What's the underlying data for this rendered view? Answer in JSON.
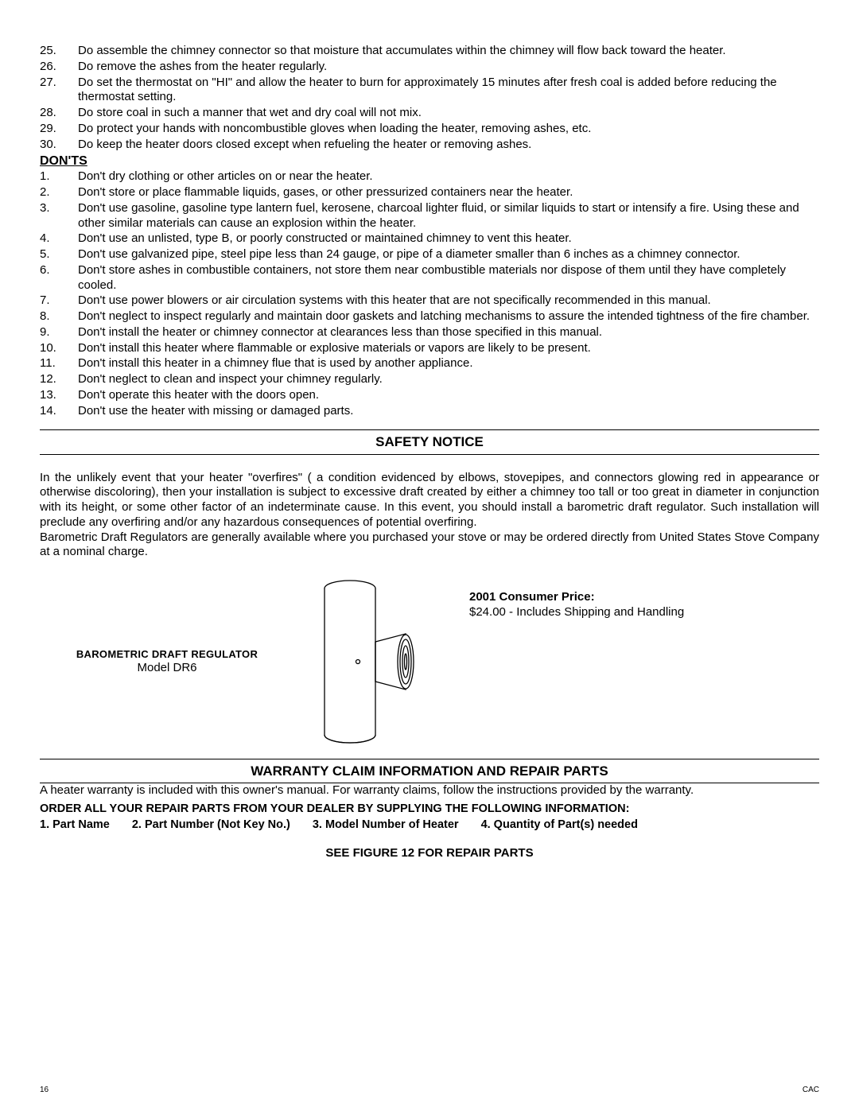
{
  "dos_list": [
    {
      "n": "25.",
      "t": "Do assemble the chimney connector so that moisture that accumulates within the chimney will flow back toward the heater."
    },
    {
      "n": "26.",
      "t": "Do remove the ashes from the heater regularly."
    },
    {
      "n": "27.",
      "t": "Do set the thermostat on \"HI\" and allow the heater to burn for approximately 15 minutes after fresh coal is added before reducing the thermostat setting."
    },
    {
      "n": "28.",
      "t": "Do store coal in such a manner that wet and dry coal will not mix."
    },
    {
      "n": "29.",
      "t": "Do protect your hands with noncombustible gloves when loading the heater, removing ashes, etc."
    },
    {
      "n": "30.",
      "t": "Do keep the heater doors closed except when refueling the heater or removing ashes."
    }
  ],
  "donts_title": "DON'TS",
  "donts_list": [
    {
      "n": "1.",
      "t": "Don't dry clothing or other articles on or near the heater."
    },
    {
      "n": "2.",
      "t": "Don't store or place flammable liquids, gases, or other pressurized containers near the heater."
    },
    {
      "n": "3.",
      "t": "Don't use gasoline, gasoline type lantern fuel, kerosene, charcoal lighter fluid, or similar liquids to start or intensify a fire.  Using these and other similar materials can cause an explosion within the heater."
    },
    {
      "n": "4.",
      "t": "Don't use an unlisted, type B, or poorly constructed or maintained chimney to vent this heater."
    },
    {
      "n": "5.",
      "t": "Don't use galvanized pipe, steel pipe less than 24 gauge, or pipe of a diameter smaller than 6 inches as a chimney connector."
    },
    {
      "n": "6.",
      "t": "Don't store ashes in combustible containers, not store them near combustible materials nor dispose of them until they have completely cooled."
    },
    {
      "n": "7.",
      "t": "Don't use power blowers or air circulation systems with this heater that are not specifically recommended in this manual."
    },
    {
      "n": "8.",
      "t": "Don't neglect to inspect regularly and maintain door gaskets and latching mechanisms to assure the intended tightness of the fire chamber."
    },
    {
      "n": "9.",
      "t": "Don't install the heater or chimney connector at clearances less than those specified in this manual."
    },
    {
      "n": "10.",
      "t": "Don't install this heater where flammable or explosive materials or vapors are likely to be present."
    },
    {
      "n": "11.",
      "t": "Don't install this heater in a chimney flue that is used by another appliance."
    },
    {
      "n": "12.",
      "t": "Don't neglect to clean and inspect your chimney regularly."
    },
    {
      "n": "13.",
      "t": "Don't operate this heater with the doors open."
    },
    {
      "n": "14.",
      "t": "Don't use the heater with missing or damaged parts."
    }
  ],
  "safety_heading": "SAFETY NOTICE",
  "safety_para1": "In the unlikely event that your heater \"overfires\" ( a condition evidenced by elbows, stovepipes, and connectors glowing red in appearance or otherwise discoloring), then your installation is subject to excessive draft created by either a chimney too tall or too great in diameter in conjunction with its height, or some other factor of an indeterminate cause.  In this event, you should install a barometric draft regulator.  Such installation will preclude any overfiring and/or any hazardous consequences of potential overfiring.",
  "safety_para2": "Barometric Draft Regulators are generally available where you purchased your stove or may be ordered directly from United States Stove Company at a nominal charge.",
  "product": {
    "name": "BAROMETRIC DRAFT REGULATOR",
    "model": "Model DR6",
    "price_label": "2001 Consumer Price:",
    "price_text": "$24.00 - Includes Shipping and Handling"
  },
  "warranty_heading": "WARRANTY CLAIM INFORMATION AND REPAIR PARTS",
  "warranty_intro": "A heater warranty is included  with this owner's manual.  For warranty claims, follow the instructions provided by the warranty.",
  "order_line": "ORDER ALL YOUR REPAIR PARTS FROM YOUR DEALER BY SUPPLYING THE FOLLOWING INFORMATION:",
  "order_items": [
    "1.  Part Name",
    "2.  Part Number (Not Key No.)",
    "3.  Model Number of Heater",
    "4.  Quantity of Part(s) needed"
  ],
  "see_figure": "SEE FIGURE 12 FOR REPAIR PARTS",
  "page_number": "16",
  "page_code": "CAC",
  "diagram": {
    "stroke": "#000000",
    "stroke_width": 1.3,
    "fill": "#ffffff"
  }
}
